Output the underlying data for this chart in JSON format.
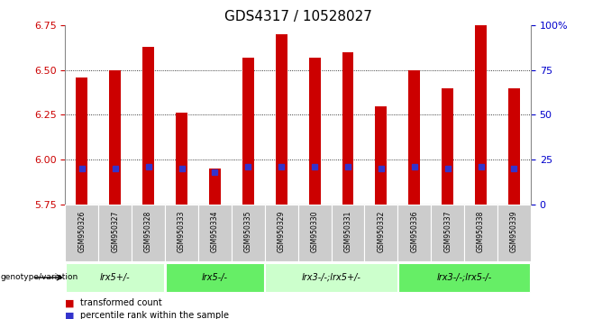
{
  "title": "GDS4317 / 10528027",
  "samples": [
    "GSM950326",
    "GSM950327",
    "GSM950328",
    "GSM950333",
    "GSM950334",
    "GSM950335",
    "GSM950329",
    "GSM950330",
    "GSM950331",
    "GSM950332",
    "GSM950336",
    "GSM950337",
    "GSM950338",
    "GSM950339"
  ],
  "transformed_count": [
    6.46,
    6.5,
    6.63,
    6.26,
    5.95,
    6.57,
    6.7,
    6.57,
    6.6,
    6.3,
    6.5,
    6.4,
    6.75,
    6.4
  ],
  "percentile_rank_right": [
    20,
    20,
    21,
    20,
    18,
    21,
    21,
    21,
    21,
    20,
    21,
    20,
    21,
    20
  ],
  "ylim_left": [
    5.75,
    6.75
  ],
  "ylim_right": [
    0,
    100
  ],
  "bar_color": "#cc0000",
  "blue_color": "#3333cc",
  "groups": [
    {
      "label": "lrx5+/-",
      "start": 0,
      "end": 3,
      "color": "#ccffcc"
    },
    {
      "label": "lrx5-/-",
      "start": 3,
      "end": 6,
      "color": "#66ee66"
    },
    {
      "label": "lrx3-/-;lrx5+/-",
      "start": 6,
      "end": 10,
      "color": "#ccffcc"
    },
    {
      "label": "lrx3-/-;lrx5-/-",
      "start": 10,
      "end": 14,
      "color": "#66ee66"
    }
  ],
  "y_ticks_left": [
    5.75,
    6.0,
    6.25,
    6.5,
    6.75
  ],
  "y_ticks_right": [
    0,
    25,
    50,
    75,
    100
  ],
  "right_tick_labels": [
    "0",
    "25",
    "50",
    "75",
    "100%"
  ],
  "title_fontsize": 11,
  "bar_width": 0.35,
  "ylabel_left_color": "#cc0000",
  "ylabel_right_color": "#0000cc",
  "sample_cell_color": "#cccccc",
  "legend_red_label": "transformed count",
  "legend_blue_label": "percentile rank within the sample",
  "genotype_label": "genotype/variation"
}
